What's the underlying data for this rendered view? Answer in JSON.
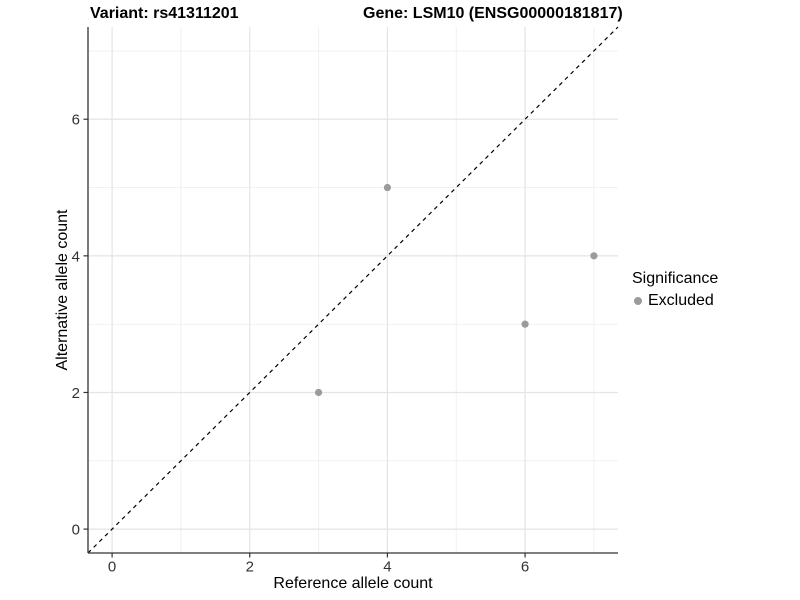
{
  "chart_data": {
    "type": "scatter",
    "titles": [
      "Variant: rs41311201",
      "Gene: LSM10 (ENSG00000181817)"
    ],
    "xlabel": "Reference allele count",
    "ylabel": "Alternative allele count",
    "xlim": [
      -0.35,
      7.35
    ],
    "ylim": [
      -0.35,
      7.35
    ],
    "grid": true,
    "ticks": {
      "x": {
        "major": [
          0,
          2,
          4,
          6
        ],
        "minor": [
          1,
          3,
          5,
          7
        ],
        "labels": [
          "0",
          "2",
          "4",
          "6"
        ]
      },
      "y": {
        "major": [
          0,
          2,
          4,
          6
        ],
        "minor": [
          1,
          3,
          5,
          7
        ],
        "labels": [
          "0",
          "2",
          "4",
          "6"
        ]
      }
    },
    "series": [
      {
        "name": "Excluded",
        "color": "#9b9b9b",
        "points": [
          {
            "x": 3,
            "y": 2
          },
          {
            "x": 4,
            "y": 5
          },
          {
            "x": 6,
            "y": 3
          },
          {
            "x": 7,
            "y": 4
          }
        ]
      }
    ],
    "identity_line": {
      "style": "dashed",
      "equation": "y = x",
      "color": "#000000"
    },
    "legend": {
      "title": "Significance",
      "position": "right",
      "items": [
        {
          "label": "Excluded",
          "color": "#9b9b9b"
        }
      ]
    },
    "colors": {
      "background": "#ffffff",
      "grid_major": "#e4e4e4",
      "grid_minor": "#efefef",
      "axis_line": "#333333",
      "tick_mark": "#333333",
      "tick_text": "#333333",
      "point": "#9b9b9b"
    }
  }
}
